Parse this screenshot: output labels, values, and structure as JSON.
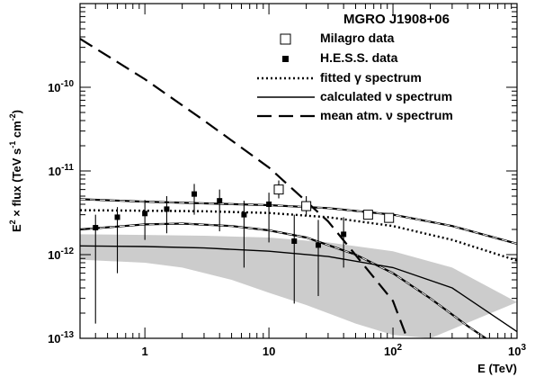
{
  "chart_data": {
    "type": "scatter",
    "title": "MGRO J1908+06",
    "xlabel_parts": [
      "E (TeV)"
    ],
    "ylabel_parts": [
      "E",
      "2",
      " × flux (TeV s",
      "-1",
      " cm",
      "-2",
      ")"
    ],
    "xscale": "log",
    "yscale": "log",
    "xlim": [
      0.3,
      1000
    ],
    "ylim": [
      1e-13,
      1e-09
    ],
    "x_ticks": [
      {
        "value": 1,
        "label": "1"
      },
      {
        "value": 10,
        "label": "10"
      },
      {
        "value": 100,
        "label": "10",
        "sup": "2"
      },
      {
        "value": 1000,
        "label": "10",
        "sup": "3"
      }
    ],
    "y_ticks": [
      {
        "value": 1e-13,
        "label": "10",
        "sup": "-13"
      },
      {
        "value": 1e-12,
        "label": "10",
        "sup": "-12"
      },
      {
        "value": 1e-11,
        "label": "10",
        "sup": "-11"
      },
      {
        "value": 1e-10,
        "label": "10",
        "sup": "-10"
      }
    ],
    "legend_position": "top-right",
    "legend": [
      {
        "label": "Milagro data",
        "style": "open-square"
      },
      {
        "label": "H.E.S.S. data",
        "style": "filled-square"
      },
      {
        "label": "fitted γ spectrum",
        "style": "dotted"
      },
      {
        "label": "calculated ν spectrum",
        "style": "solid"
      },
      {
        "label": "mean atm. ν spectrum",
        "style": "long-dash"
      }
    ],
    "series": [
      {
        "name": "Milagro data",
        "marker": "open-square",
        "x": [
          12,
          20,
          63,
          93
        ],
        "y": [
          6e-12,
          3.8e-12,
          3e-12,
          2.75e-12
        ],
        "yerr_low": [
          4.7e-12,
          2.9e-12,
          null,
          null
        ],
        "yerr_high": [
          7.7e-12,
          5e-12,
          null,
          null
        ]
      },
      {
        "name": "H.E.S.S. data",
        "marker": "filled-square",
        "x": [
          0.4,
          0.6,
          1.0,
          1.5,
          2.5,
          4.0,
          6.3,
          10.0,
          16.0,
          25.0,
          40.0
        ],
        "y": [
          2.1e-12,
          2.8e-12,
          3.1e-12,
          3.5e-12,
          5.3e-12,
          4.4e-12,
          3e-12,
          4e-12,
          1.45e-12,
          1.3e-12,
          1.75e-12
        ],
        "yerr_low": [
          1.5e-13,
          6e-13,
          1.5e-12,
          1.8e-12,
          3e-12,
          1.9e-12,
          7e-13,
          1.4e-12,
          2.6e-13,
          3.2e-13,
          7e-13
        ],
        "yerr_high": [
          3e-12,
          3.7e-12,
          4.5e-12,
          5e-12,
          7e-12,
          6e-12,
          4.4e-12,
          5.5e-12,
          3e-12,
          2.6e-12,
          2.8e-12
        ]
      },
      {
        "name": "fitted γ spectrum",
        "style": "dotted",
        "x": [
          0.3,
          1,
          3,
          10,
          30,
          100,
          300,
          1000
        ],
        "y": [
          3.4e-12,
          3.35e-12,
          3.3e-12,
          3.15e-12,
          2.8e-12,
          2.2e-12,
          1.5e-12,
          8.5e-13
        ]
      },
      {
        "name": "fitted γ band upper",
        "style": "solid-with-dash",
        "x": [
          0.3,
          1,
          3,
          10,
          30,
          100,
          300,
          1000
        ],
        "y": [
          4.6e-12,
          4.3e-12,
          4.1e-12,
          3.9e-12,
          3.6e-12,
          3e-12,
          2.2e-12,
          1.35e-12
        ]
      },
      {
        "name": "fitted γ band lower",
        "style": "solid-with-dash",
        "x": [
          0.3,
          1,
          2,
          5,
          10,
          20,
          50,
          100,
          200,
          400,
          700
        ],
        "y": [
          2e-12,
          2.3e-12,
          2.35e-12,
          2.2e-12,
          1.95e-12,
          1.6e-12,
          1e-12,
          6e-13,
          3e-13,
          1.4e-13,
          8e-14
        ]
      },
      {
        "name": "calculated ν spectrum",
        "style": "solid",
        "x": [
          0.3,
          1,
          3,
          10,
          30,
          100,
          300,
          1000
        ],
        "y": [
          1.27e-12,
          1.25e-12,
          1.2e-12,
          1.1e-12,
          9.5e-13,
          7e-13,
          4e-13,
          1.2e-13
        ]
      },
      {
        "name": "calculated ν band upper",
        "x": [
          0.3,
          1,
          3,
          10,
          30,
          100,
          300,
          1000
        ],
        "y": [
          1.75e-12,
          1.72e-12,
          1.68e-12,
          1.6e-12,
          1.4e-12,
          1.1e-12,
          7e-13,
          2.7e-13
        ]
      },
      {
        "name": "calculated ν band lower",
        "x": [
          0.3,
          1,
          2,
          5,
          10,
          20,
          50,
          100,
          200
        ],
        "y": [
          8.7e-13,
          8e-13,
          7e-13,
          5e-13,
          3.5e-13,
          2.5e-13,
          1.5e-13,
          1.1e-13,
          1e-13
        ]
      },
      {
        "name": "mean atm. ν spectrum",
        "style": "long-dash",
        "x": [
          0.3,
          1,
          3,
          10,
          30,
          100,
          130
        ],
        "y": [
          3.8e-10,
          1.25e-10,
          4e-11,
          1.1e-11,
          2.5e-12,
          2.8e-13,
          1e-13
        ]
      }
    ]
  }
}
